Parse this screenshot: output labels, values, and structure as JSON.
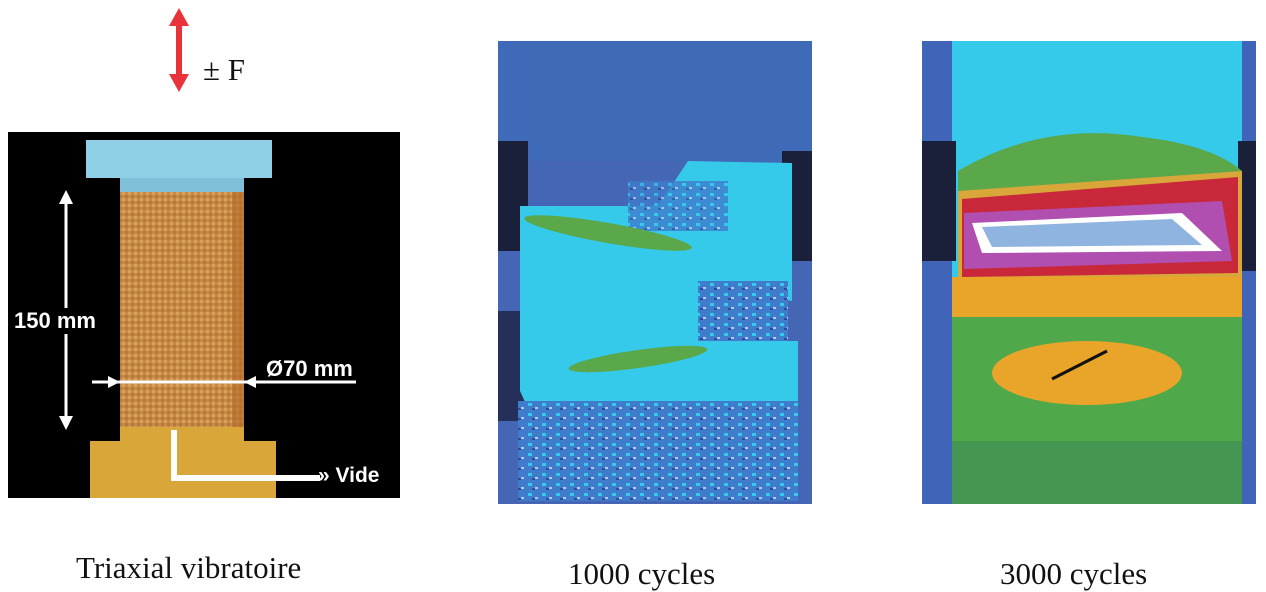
{
  "force": {
    "label": "± F"
  },
  "panel_schema": {
    "height_label": "150 mm",
    "diameter_label": "Ø70 mm",
    "vacuum_label": "» Vide"
  },
  "captions": {
    "schema": "Triaxial vibratoire",
    "cycles_1000": "1000 cycles",
    "cycles_3000": "3000 cycles"
  },
  "colors": {
    "arrow": "#e8333a",
    "background_panel": "#000000",
    "specimen": "#c9904a",
    "cap": "#8fd0e6",
    "base": "#d9a63a",
    "thermal_blue": "#3f64b8",
    "thermal_cyan": "#35c9ea",
    "thermal_green": "#5aa84a",
    "thermal_orange": "#e8a52a",
    "thermal_red": "#c8283a"
  }
}
